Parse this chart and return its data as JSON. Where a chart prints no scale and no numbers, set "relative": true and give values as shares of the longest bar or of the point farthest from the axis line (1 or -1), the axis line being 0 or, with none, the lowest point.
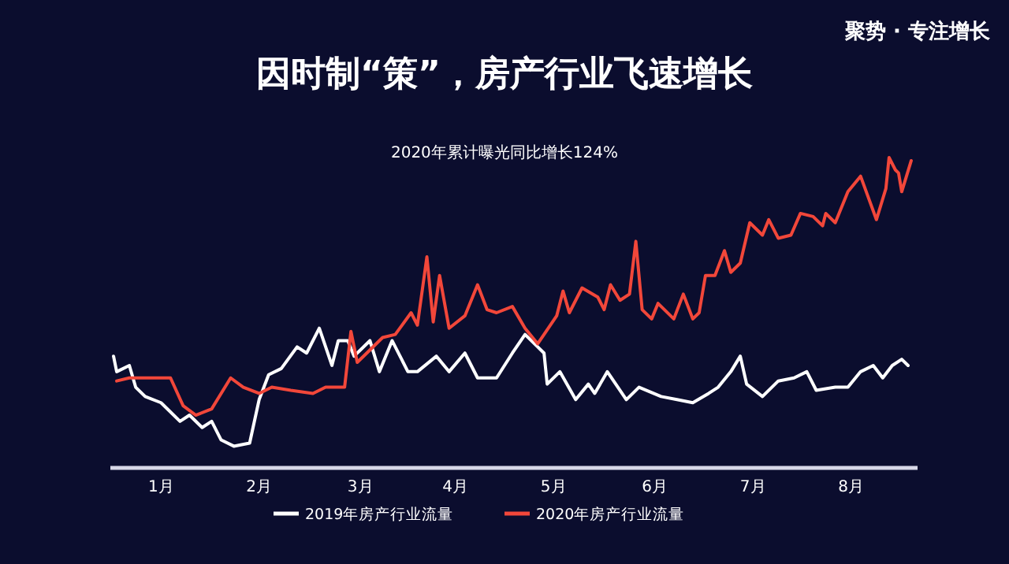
{
  "chart_data": {
    "type": "line",
    "title": "因时制“策”，房产行业飞速增长",
    "subtitle": "2020年累计曝光同比增长124%",
    "annotations": [
      "聚势 · 专注增长"
    ],
    "relative": true,
    "xlim": [
      "--01-01",
      "--09-12"
    ],
    "xticks": [
      {
        "value": "--01-17",
        "label": "1月"
      },
      {
        "value": "--02-17",
        "label": "2月"
      },
      {
        "value": "--03-20",
        "label": "3月"
      },
      {
        "value": "--04-19",
        "label": "4月"
      },
      {
        "value": "--05-20",
        "label": "5月"
      },
      {
        "value": "--06-21",
        "label": "6月"
      },
      {
        "value": "--07-22",
        "label": "7月"
      },
      {
        "value": "--08-22",
        "label": "8月"
      }
    ],
    "legend": "bottom",
    "grid": false,
    "marker": "none",
    "line_style": "solid",
    "series": [
      {
        "name": "2019年房产行业流量",
        "color": "#ffffff",
        "x": [
          "--01-02",
          "--01-03",
          "--01-07",
          "--01-09",
          "--01-12",
          "--01-17",
          "--01-23",
          "--01-26",
          "--01-30",
          "--02-02",
          "--02-05",
          "--02-09",
          "--02-14",
          "--02-17",
          "--02-20",
          "--02-24",
          "--02-29",
          "--03-03",
          "--03-07",
          "--03-11",
          "--03-13",
          "--03-16",
          "--03-18",
          "--03-23",
          "--03-26",
          "--03-30",
          "--04-04",
          "--04-07",
          "--04-13",
          "--04-17",
          "--04-22",
          "--04-26",
          "--05-02",
          "--05-07",
          "--05-11",
          "--05-15",
          "--05-17",
          "--05-18",
          "--05-22",
          "--05-27",
          "--05-31",
          "--06-02",
          "--06-06",
          "--06-12",
          "--06-16",
          "--06-23",
          "--06-28",
          "--07-03",
          "--07-08",
          "--07-11",
          "--07-15",
          "--07-18",
          "--07-20",
          "--07-25",
          "--07-30",
          "--08-04",
          "--08-08",
          "--08-11",
          "--08-17",
          "--08-21",
          "--08-25",
          "--08-29",
          "--09-01",
          "--09-04",
          "--09-07",
          "--09-09"
        ],
        "values": [
          0.36,
          0.31,
          0.33,
          0.26,
          0.23,
          0.21,
          0.15,
          0.17,
          0.13,
          0.15,
          0.09,
          0.07,
          0.08,
          0.22,
          0.3,
          0.32,
          0.39,
          0.37,
          0.45,
          0.33,
          0.41,
          0.41,
          0.36,
          0.41,
          0.31,
          0.41,
          0.31,
          0.31,
          0.36,
          0.31,
          0.37,
          0.29,
          0.29,
          0.37,
          0.43,
          0.39,
          0.37,
          0.27,
          0.31,
          0.22,
          0.27,
          0.24,
          0.31,
          0.22,
          0.26,
          0.23,
          0.22,
          0.21,
          0.24,
          0.26,
          0.31,
          0.36,
          0.27,
          0.23,
          0.28,
          0.29,
          0.31,
          0.25,
          0.26,
          0.26,
          0.31,
          0.33,
          0.29,
          0.33,
          0.35,
          0.33
        ]
      },
      {
        "name": "2020年房产行业流量",
        "color": "#f2473a",
        "x": [
          "--01-03",
          "--01-07",
          "--01-20",
          "--01-24",
          "--01-28",
          "--02-02",
          "--02-08",
          "--02-12",
          "--02-17",
          "--02-21",
          "--02-27",
          "--03-05",
          "--03-09",
          "--03-15",
          "--03-17",
          "--03-19",
          "--03-22",
          "--03-27",
          "--03-31",
          "--04-05",
          "--04-07",
          "--04-10",
          "--04-12",
          "--04-14",
          "--04-17",
          "--04-22",
          "--04-26",
          "--04-29",
          "--05-02",
          "--05-07",
          "--05-11",
          "--05-15",
          "--05-17",
          "--05-21",
          "--05-23",
          "--05-25",
          "--05-29",
          "--06-03",
          "--06-05",
          "--06-07",
          "--06-10",
          "--06-13",
          "--06-15",
          "--06-17",
          "--06-20",
          "--06-22",
          "--06-27",
          "--06-30",
          "--07-03",
          "--07-05",
          "--07-07",
          "--07-10",
          "--07-13",
          "--07-15",
          "--07-18",
          "--07-21",
          "--07-25",
          "--07-27",
          "--07-30",
          "--08-03",
          "--08-06",
          "--08-10",
          "--08-13",
          "--08-14",
          "--08-17",
          "--08-21",
          "--08-25",
          "--08-30",
          "--09-02",
          "--09-03",
          "--09-05",
          "--09-06",
          "--09-07",
          "--09-10"
        ],
        "values": [
          0.28,
          0.29,
          0.29,
          0.2,
          0.17,
          0.19,
          0.29,
          0.26,
          0.24,
          0.26,
          0.25,
          0.24,
          0.26,
          0.26,
          0.44,
          0.34,
          0.37,
          0.42,
          0.43,
          0.5,
          0.46,
          0.68,
          0.47,
          0.62,
          0.45,
          0.49,
          0.59,
          0.51,
          0.5,
          0.52,
          0.45,
          0.4,
          0.43,
          0.49,
          0.57,
          0.5,
          0.58,
          0.55,
          0.51,
          0.59,
          0.54,
          0.56,
          0.73,
          0.51,
          0.48,
          0.53,
          0.48,
          0.56,
          0.48,
          0.5,
          0.62,
          0.62,
          0.7,
          0.63,
          0.66,
          0.79,
          0.75,
          0.8,
          0.74,
          0.75,
          0.82,
          0.81,
          0.78,
          0.82,
          0.79,
          0.89,
          0.94,
          0.8,
          0.9,
          1,
          0.96,
          0.95,
          0.89,
          0.99
        ]
      }
    ]
  }
}
